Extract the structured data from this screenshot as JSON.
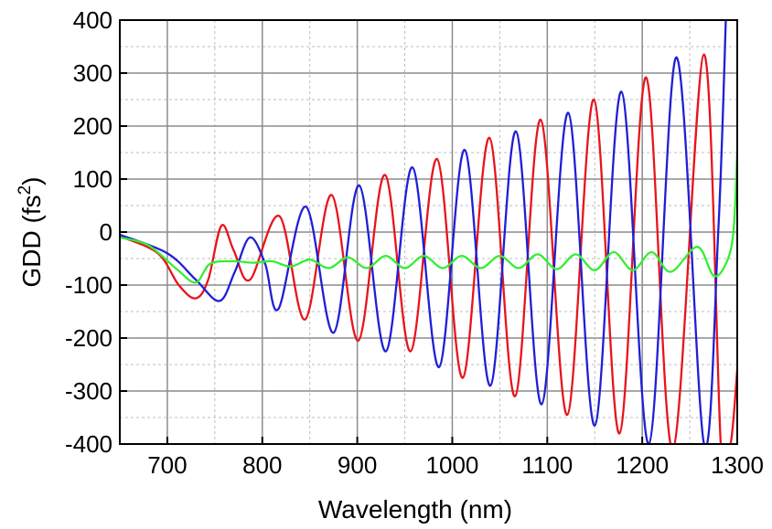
{
  "chart_data": {
    "type": "line",
    "title": "",
    "xlabel": "Wavelength (nm)",
    "ylabel_main": "GDD (fs",
    "ylabel_sup": "2",
    "ylabel_close": ")",
    "xlim": [
      650,
      1300
    ],
    "ylim": [
      -400,
      400
    ],
    "x_ticks": [
      700,
      800,
      900,
      1000,
      1100,
      1200,
      1300
    ],
    "x_tick_labels": [
      "700",
      "800",
      "900",
      "1000",
      "1100",
      "1200",
      "1300"
    ],
    "y_ticks": [
      400,
      300,
      200,
      100,
      0,
      -100,
      -200,
      -300,
      -400
    ],
    "y_tick_labels": [
      "400",
      "300",
      "200",
      "100",
      "0",
      "-100",
      "-200",
      "-300",
      "-400"
    ],
    "grid": true,
    "legend": "none",
    "series": [
      {
        "color": "#e8141b",
        "points": [
          [
            650,
            -8
          ],
          [
            690,
            -40
          ],
          [
            712,
            -100
          ],
          [
            730,
            -125
          ],
          [
            743,
            -90
          ],
          [
            757,
            12
          ],
          [
            770,
            -35
          ],
          [
            787,
            -90
          ],
          [
            818,
            30
          ],
          [
            845,
            -165
          ],
          [
            873,
            70
          ],
          [
            901,
            -205
          ],
          [
            929,
            108
          ],
          [
            956,
            -225
          ],
          [
            984,
            138
          ],
          [
            1011,
            -275
          ],
          [
            1039,
            178
          ],
          [
            1066,
            -310
          ],
          [
            1093,
            212
          ],
          [
            1121,
            -345
          ],
          [
            1149,
            250
          ],
          [
            1176,
            -380
          ],
          [
            1204,
            292
          ],
          [
            1232,
            -410
          ],
          [
            1265,
            335
          ],
          [
            1283,
            -410
          ],
          [
            1293,
            -400
          ],
          [
            1300,
            -260
          ]
        ]
      },
      {
        "color": "#1f1fd6",
        "points": [
          [
            650,
            -5
          ],
          [
            700,
            -40
          ],
          [
            730,
            -90
          ],
          [
            755,
            -130
          ],
          [
            771,
            -75
          ],
          [
            787,
            -10
          ],
          [
            803,
            -60
          ],
          [
            817,
            -145
          ],
          [
            846,
            48
          ],
          [
            875,
            -190
          ],
          [
            902,
            88
          ],
          [
            930,
            -225
          ],
          [
            958,
            122
          ],
          [
            986,
            -255
          ],
          [
            1013,
            155
          ],
          [
            1040,
            -290
          ],
          [
            1067,
            190
          ],
          [
            1094,
            -325
          ],
          [
            1122,
            225
          ],
          [
            1150,
            -365
          ],
          [
            1178,
            265
          ],
          [
            1207,
            -400
          ],
          [
            1236,
            330
          ],
          [
            1265,
            -400
          ],
          [
            1280,
            0
          ],
          [
            1288,
            400
          ]
        ]
      },
      {
        "color": "#33ee33",
        "points": [
          [
            650,
            -10
          ],
          [
            680,
            -25
          ],
          [
            710,
            -70
          ],
          [
            730,
            -95
          ],
          [
            745,
            -60
          ],
          [
            770,
            -55
          ],
          [
            790,
            -58
          ],
          [
            810,
            -55
          ],
          [
            830,
            -65
          ],
          [
            850,
            -52
          ],
          [
            870,
            -68
          ],
          [
            890,
            -48
          ],
          [
            910,
            -68
          ],
          [
            930,
            -45
          ],
          [
            950,
            -68
          ],
          [
            970,
            -45
          ],
          [
            990,
            -68
          ],
          [
            1010,
            -45
          ],
          [
            1030,
            -68
          ],
          [
            1050,
            -45
          ],
          [
            1070,
            -68
          ],
          [
            1090,
            -42
          ],
          [
            1110,
            -70
          ],
          [
            1130,
            -42
          ],
          [
            1150,
            -72
          ],
          [
            1170,
            -38
          ],
          [
            1190,
            -72
          ],
          [
            1210,
            -38
          ],
          [
            1230,
            -75
          ],
          [
            1258,
            -28
          ],
          [
            1275,
            -82
          ],
          [
            1288,
            -60
          ],
          [
            1296,
            0
          ],
          [
            1300,
            150
          ]
        ]
      }
    ]
  }
}
